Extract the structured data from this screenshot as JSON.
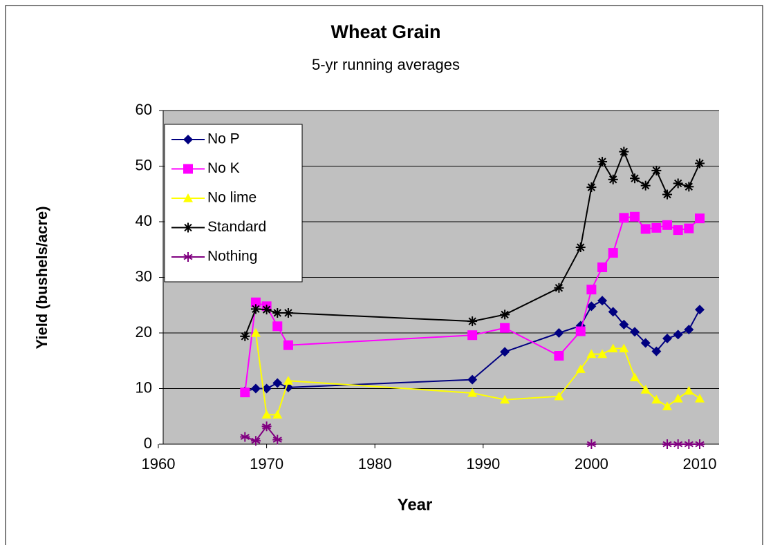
{
  "chart_data": {
    "type": "line",
    "title": "Wheat  Grain",
    "subtitle": "5-yr running averages",
    "x_label": "Year",
    "y_label": "Yield (bushels/acre)",
    "x": [
      1968,
      1969,
      1970,
      1971,
      1972,
      1989,
      1992,
      1997,
      1999,
      2000,
      2001,
      2002,
      2003,
      2004,
      2005,
      2006,
      2007,
      2008,
      2009,
      2010
    ],
    "xlim": [
      1960,
      2010
    ],
    "xticks": [
      1960,
      1970,
      1980,
      1990,
      2000,
      2010
    ],
    "ylim": [
      0,
      60
    ],
    "yticks": [
      0,
      10,
      20,
      30,
      40,
      50,
      60
    ],
    "grid": true,
    "legend": "upper left",
    "series": [
      {
        "name": "No P",
        "color": "#000080",
        "marker": "diamond",
        "values": [
          9.5,
          10,
          10,
          11,
          10.2,
          11.6,
          16.6,
          20,
          21.3,
          24.8,
          25.8,
          23.8,
          21.5,
          20.2,
          18.2,
          16.7,
          19,
          19.7,
          20.6,
          24.2
        ]
      },
      {
        "name": "No K",
        "color": "#ff00ff",
        "marker": "square",
        "values": [
          9.3,
          25.5,
          24.8,
          21.2,
          17.8,
          19.6,
          20.9,
          15.9,
          20.3,
          27.8,
          31.8,
          34.4,
          40.7,
          40.9,
          38.7,
          38.9,
          39.4,
          38.5,
          38.8,
          40.6
        ]
      },
      {
        "name": "No lime",
        "color": "#ffff00",
        "marker": "triangle",
        "values": [
          null,
          20,
          5.3,
          5.3,
          11.4,
          9.2,
          8,
          8.6,
          13.5,
          16.2,
          16.2,
          17.2,
          17.2,
          12,
          9.8,
          8,
          6.8,
          8.2,
          9.6,
          8.2
        ]
      },
      {
        "name": "Standard",
        "color": "#000000",
        "marker": "star",
        "values": [
          19.4,
          24.3,
          24.2,
          23.6,
          23.6,
          22.1,
          23.3,
          28.1,
          35.4,
          46.2,
          50.8,
          47.6,
          52.6,
          47.8,
          46.5,
          49.2,
          44.9,
          46.9,
          46.3,
          50.5
        ]
      },
      {
        "name": "Nothing",
        "color": "#800080",
        "marker": "asterisk",
        "values": [
          1.3,
          0.6,
          3.2,
          0.8,
          null,
          null,
          null,
          null,
          null,
          0,
          null,
          null,
          null,
          null,
          null,
          null,
          0,
          0,
          0,
          0
        ]
      }
    ]
  }
}
